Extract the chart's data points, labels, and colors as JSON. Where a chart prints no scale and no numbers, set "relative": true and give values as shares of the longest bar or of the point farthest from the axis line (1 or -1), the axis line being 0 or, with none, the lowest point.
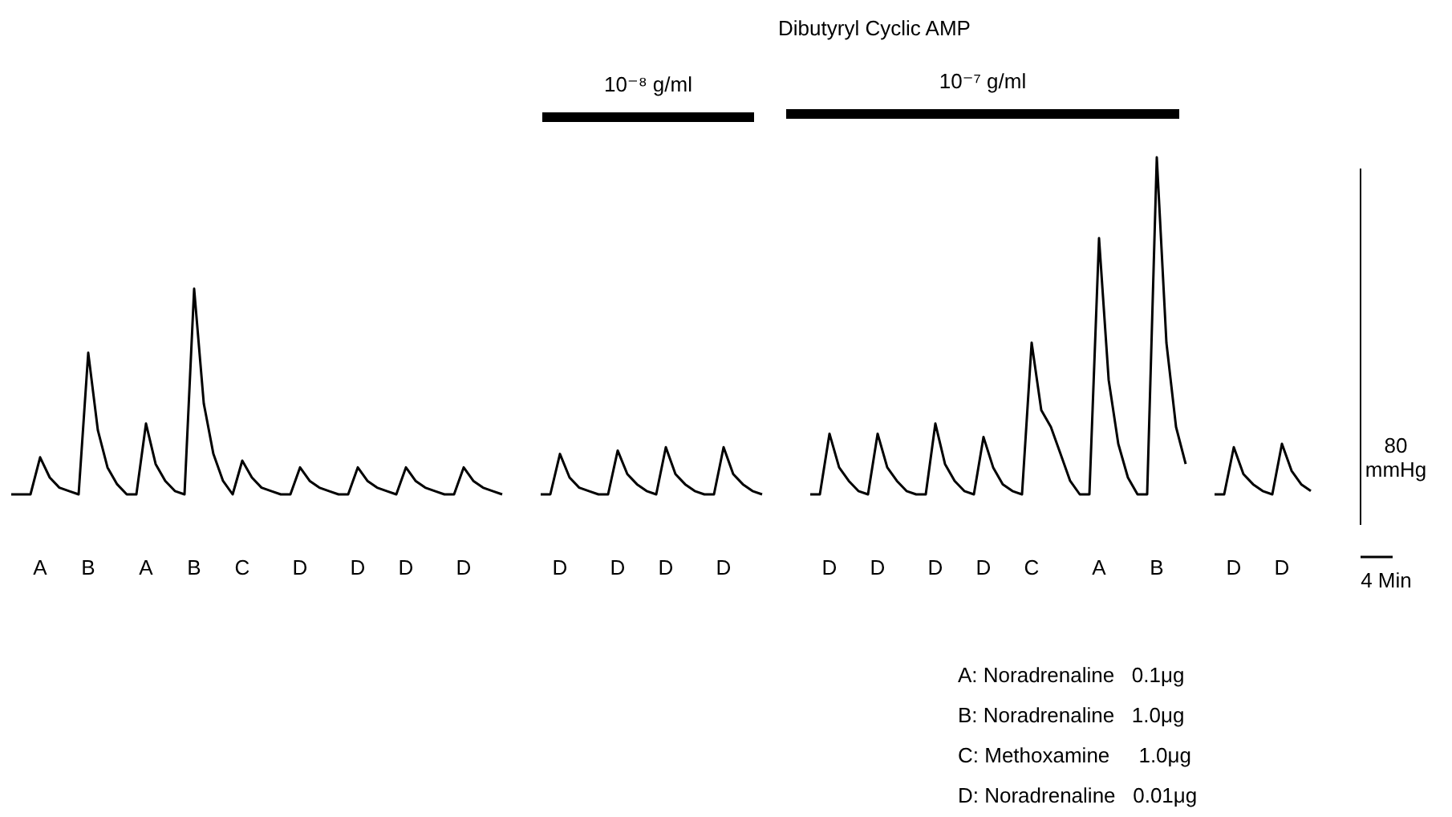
{
  "chart_data": {
    "type": "line",
    "relative": true,
    "title": "Dibutyryl Cyclic AMP",
    "line_style": "solid",
    "categories": [
      null,
      null,
      null,
      "A",
      null,
      null,
      null,
      null,
      "B",
      null,
      null,
      null,
      null,
      null,
      "A",
      null,
      null,
      null,
      null,
      "B",
      null,
      null,
      null,
      null,
      "C",
      null,
      null,
      null,
      null,
      null,
      "D",
      null,
      null,
      null,
      null,
      null,
      "D",
      null,
      null,
      null,
      null,
      "D",
      null,
      null,
      null,
      null,
      null,
      "D",
      null,
      null,
      null,
      null,
      null,
      null,
      null,
      null,
      null,
      "D",
      null,
      null,
      null,
      null,
      null,
      "D",
      null,
      null,
      null,
      null,
      "D",
      null,
      null,
      null,
      null,
      null,
      "D",
      null,
      null,
      null,
      null,
      null,
      null,
      null,
      null,
      null,
      null,
      "D",
      null,
      null,
      null,
      null,
      "D",
      null,
      null,
      null,
      null,
      null,
      "D",
      null,
      null,
      null,
      null,
      "D",
      null,
      null,
      null,
      null,
      "C",
      null,
      null,
      null,
      null,
      null,
      null,
      "A",
      null,
      null,
      null,
      null,
      null,
      "B",
      null,
      null,
      null,
      null,
      null,
      null,
      null,
      "D",
      null,
      null,
      null,
      null,
      "D",
      null,
      null,
      null
    ],
    "series": [
      {
        "color": "#000000",
        "values": [
          0,
          0,
          0,
          0.11,
          0.05,
          0.02,
          0.01,
          0,
          0.42,
          0.19,
          0.08,
          0.03,
          0,
          0,
          0.21,
          0.09,
          0.04,
          0.01,
          0,
          0.61,
          0.27,
          0.12,
          0.04,
          0,
          0.1,
          0.05,
          0.02,
          0.01,
          0,
          0,
          0.08,
          0.04,
          0.02,
          0.01,
          0,
          0,
          0.08,
          0.04,
          0.02,
          0.01,
          0,
          0.08,
          0.04,
          0.02,
          0.01,
          0,
          0,
          0.08,
          0.04,
          0.02,
          0.01,
          0,
          null,
          null,
          null,
          0,
          0,
          0.12,
          0.05,
          0.02,
          0.01,
          0,
          0,
          0.13,
          0.06,
          0.03,
          0.01,
          0,
          0.14,
          0.06,
          0.03,
          0.01,
          0,
          0,
          0.14,
          0.06,
          0.03,
          0.01,
          0,
          null,
          null,
          null,
          null,
          0,
          0,
          0.18,
          0.08,
          0.04,
          0.01,
          0,
          0.18,
          0.08,
          0.04,
          0.01,
          0,
          0,
          0.21,
          0.09,
          0.04,
          0.01,
          0,
          0.17,
          0.08,
          0.03,
          0.01,
          0,
          0.45,
          0.25,
          0.2,
          0.12,
          0.04,
          0,
          0,
          0.76,
          0.34,
          0.15,
          0.05,
          0,
          0,
          1,
          0.45,
          0.2,
          0.09,
          null,
          null,
          0,
          0,
          0.14,
          0.06,
          0.03,
          0.01,
          0,
          0.15,
          0.07,
          0.03,
          0.01
        ]
      }
    ],
    "annotations": [
      "10⁻⁸ g/ml",
      "10⁻⁷ g/ml",
      "80 mmHg",
      "4 Min",
      "A: Noradrenaline   0.1μg",
      "B: Noradrenaline   1.0μg",
      "C: Methoxamine     1.0μg",
      "D: Noradrenaline   0.01μg"
    ]
  }
}
